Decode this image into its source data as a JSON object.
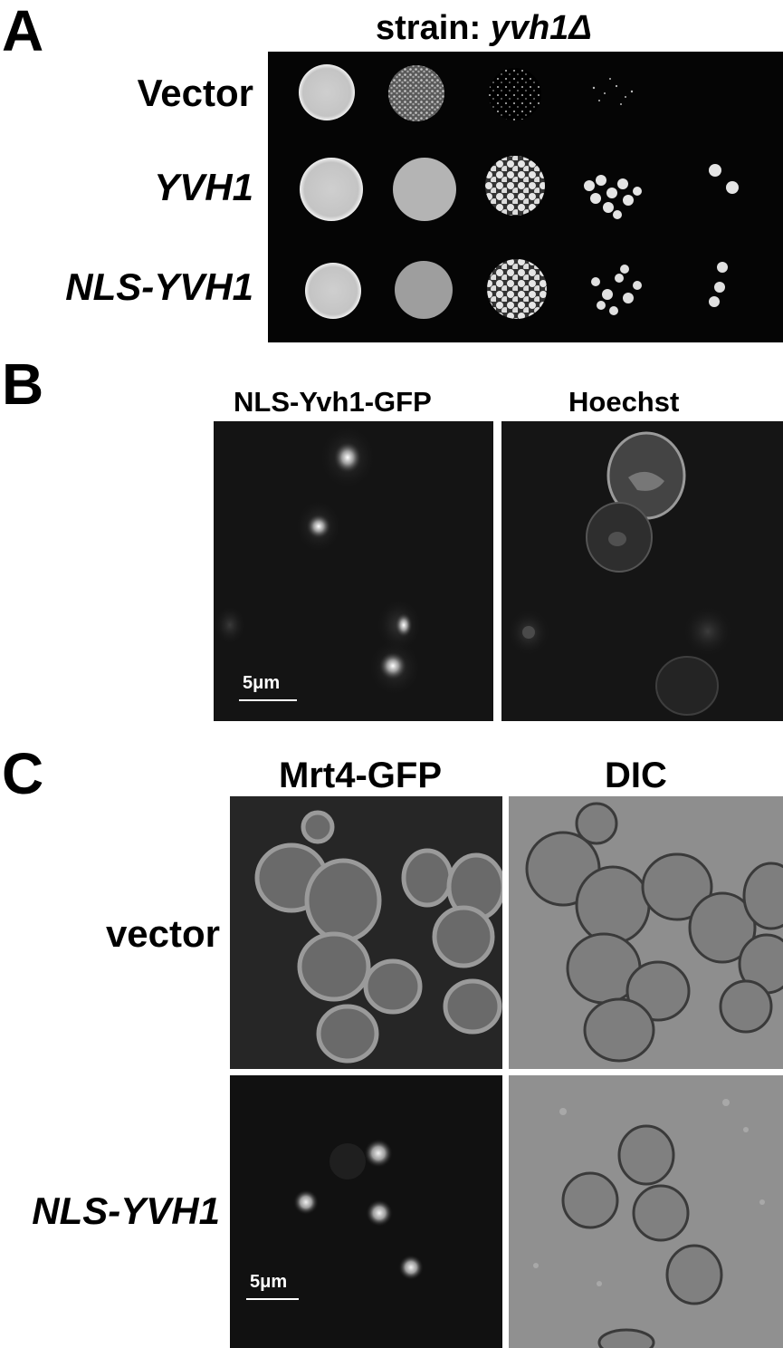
{
  "panelA": {
    "letter": "A",
    "strain_label": "strain: ",
    "strain_name": "yvh1Δ",
    "rows": [
      "Vector",
      "YVH1",
      "NLS-YVH1"
    ]
  },
  "panelB": {
    "letter": "B",
    "columns": [
      "NLS-Yvh1-GFP",
      "Hoechst"
    ],
    "scale_bar": "5μm"
  },
  "panelC": {
    "letter": "C",
    "columns": [
      "Mrt4-GFP",
      "DIC"
    ],
    "rows": [
      "vector",
      "NLS-YVH1"
    ],
    "scale_bar": "5μm"
  }
}
